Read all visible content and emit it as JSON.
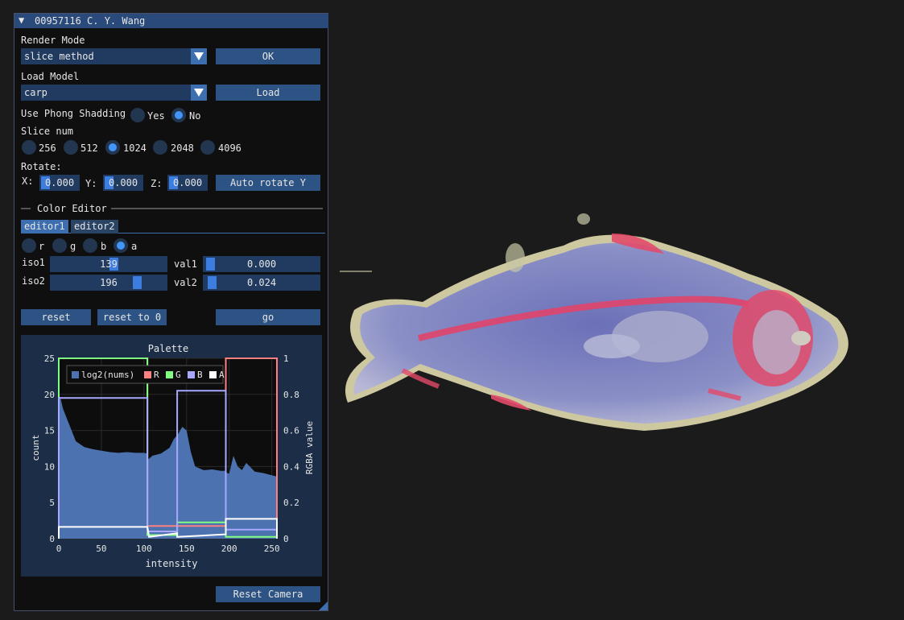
{
  "window": {
    "title": "00957116 C. Y. Wang"
  },
  "render_mode": {
    "label": "Render Mode",
    "value": "slice method",
    "ok_button": "OK"
  },
  "load_model": {
    "label": "Load Model",
    "value": "carp",
    "load_button": "Load"
  },
  "phong": {
    "label": "Use Phong Shadding",
    "options": [
      "Yes",
      "No"
    ],
    "selected": "No"
  },
  "slice": {
    "label": "Slice num",
    "options": [
      "256",
      "512",
      "1024",
      "2048",
      "4096"
    ],
    "selected": "1024"
  },
  "rotate": {
    "label": "Rotate:",
    "x_label": "X:",
    "x_value": "0.000",
    "y_label": "Y:",
    "y_value": "0.000",
    "z_label": "Z:",
    "z_value": "0.000",
    "auto_button": "Auto rotate Y"
  },
  "color_editor": {
    "title": "Color Editor",
    "tabs": [
      "editor1",
      "editor2"
    ],
    "active_tab": "editor1",
    "channels": [
      "r",
      "g",
      "b",
      "a"
    ],
    "selected_channel": "a",
    "iso1": {
      "label": "iso1",
      "value": "139"
    },
    "iso2": {
      "label": "iso2",
      "value": "196"
    },
    "val1": {
      "label": "val1",
      "value": "0.000"
    },
    "val2": {
      "label": "val2",
      "value": "0.024"
    },
    "reset_button": "reset",
    "reset0_button": "reset to 0",
    "go_button": "go"
  },
  "reset_camera_button": "Reset Camera",
  "colors": {
    "accent": "#4296fa",
    "button": "#2d5384",
    "frame": "#213b60",
    "panel": "#0f0f0f",
    "plot_bg": "#1c2e47"
  },
  "chart_data": {
    "type": "area",
    "title": "Palette",
    "xlabel": "intensity",
    "ylabel": "count",
    "y2label": "RGBA value",
    "xlim": [
      0,
      256
    ],
    "ylim": [
      0,
      25
    ],
    "y2lim": [
      0,
      1
    ],
    "xticks": [
      "0",
      "50",
      "100",
      "150",
      "200",
      "250"
    ],
    "yticks": [
      "0",
      "5",
      "10",
      "15",
      "20",
      "25"
    ],
    "y2ticks": [
      "0",
      "0.2",
      "0.4",
      "0.6",
      "0.8",
      "1"
    ],
    "legend": [
      "log2(nums)",
      "R",
      "G",
      "B",
      "A"
    ],
    "legend_position": "top-left",
    "series": [
      {
        "name": "log2(nums)",
        "axis": "left",
        "color": "#4c72b0",
        "x": [
          0,
          2,
          5,
          10,
          15,
          20,
          30,
          40,
          50,
          60,
          70,
          80,
          90,
          100,
          104,
          105,
          110,
          120,
          130,
          135,
          140,
          145,
          150,
          155,
          160,
          170,
          180,
          190,
          195,
          196,
          200,
          205,
          210,
          215,
          220,
          230,
          240,
          250,
          256
        ],
        "y": [
          20,
          19.5,
          18,
          16.5,
          15,
          13.5,
          12.7,
          12.4,
          12.2,
          12.0,
          11.9,
          12.0,
          11.9,
          11.9,
          11.8,
          11.0,
          11.5,
          11.8,
          12.6,
          13.8,
          14.5,
          15.5,
          15.0,
          12.0,
          10.0,
          9.5,
          9.6,
          9.4,
          9.4,
          9.2,
          9.0,
          11.5,
          10.0,
          9.5,
          10.5,
          9.3,
          9.1,
          8.8,
          8.6
        ]
      },
      {
        "name": "R",
        "axis": "right",
        "color": "#ff8080",
        "x": [
          0,
          0,
          104,
          104,
          196,
          196,
          256,
          256
        ],
        "y": [
          0,
          1,
          1,
          0.07,
          0.07,
          1,
          1,
          0
        ]
      },
      {
        "name": "G",
        "axis": "right",
        "color": "#80ff80",
        "x": [
          0,
          0,
          104,
          104,
          139,
          139,
          196,
          196,
          256,
          256
        ],
        "y": [
          0,
          1,
          1,
          0.02,
          0.02,
          0.09,
          0.09,
          0.01,
          0.01,
          0
        ]
      },
      {
        "name": "B",
        "axis": "right",
        "color": "#a8a8ff",
        "x": [
          0,
          0,
          104,
          104,
          139,
          139,
          196,
          196,
          256,
          256
        ],
        "y": [
          0,
          0.78,
          0.78,
          0.04,
          0.04,
          0.82,
          0.82,
          0.05,
          0.05,
          0
        ]
      },
      {
        "name": "A",
        "axis": "right",
        "color": "#ffffff",
        "x": [
          0,
          0,
          104,
          106,
          139,
          139,
          196,
          196,
          256,
          256
        ],
        "y": [
          0,
          0.065,
          0.065,
          0.01,
          0.03,
          0.01,
          0.024,
          0.11,
          0.11,
          0
        ]
      }
    ]
  }
}
